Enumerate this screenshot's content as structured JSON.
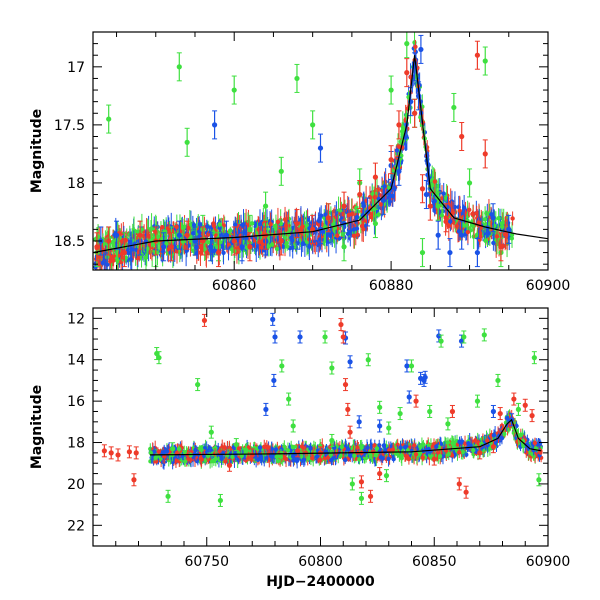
{
  "chart_data": [
    {
      "type": "scatter",
      "xlabel": "",
      "ylabel": "Magnitude",
      "xlim": [
        60842,
        60900
      ],
      "ylim": [
        18.75,
        16.7
      ],
      "y_inverted": true,
      "x_ticks": [
        60860,
        60880,
        60900
      ],
      "x_tick_labels": [
        "60860",
        "60880",
        "60900"
      ],
      "y_ticks": [
        17,
        17.5,
        18,
        18.5
      ],
      "y_tick_labels": [
        "17",
        "17.5",
        "18",
        "18.5"
      ],
      "grid": false,
      "colors": {
        "blue": "#1a52e6",
        "green": "#3fe040",
        "red": "#ee3b2a",
        "model": "#000000"
      },
      "model_curve": {
        "x": [
          60842,
          60850,
          60860,
          60870,
          60876,
          60880,
          60882,
          60883,
          60885,
          60888,
          60892,
          60896,
          60900
        ],
        "y": [
          18.6,
          18.5,
          18.47,
          18.42,
          18.32,
          18.05,
          17.5,
          16.9,
          18.05,
          18.3,
          18.38,
          18.44,
          18.48
        ]
      },
      "series": [
        {
          "color": "blue",
          "x": [
            60843,
            60845,
            60848,
            60851,
            60853,
            60855,
            60857,
            60859,
            60861,
            60864,
            60868,
            60871,
            60874,
            60877,
            60879,
            60881,
            60882.5,
            60883,
            60883.5,
            60884.5,
            60886,
            60887.5,
            60889,
            60891,
            60893,
            60895,
            60857.5,
            60871,
            60880,
            60883.8
          ],
          "y": [
            18.5,
            18.45,
            18.5,
            18.55,
            18.45,
            18.5,
            18.55,
            18.45,
            18.55,
            18.5,
            18.45,
            18.4,
            18.35,
            18.25,
            18.15,
            17.9,
            17.3,
            17.0,
            17.25,
            18.1,
            18.45,
            18.6,
            18.45,
            18.6,
            18.3,
            18.4,
            17.5,
            17.7,
            17.85,
            16.85
          ]
        },
        {
          "color": "green",
          "x": [
            60842.5,
            60844,
            60846,
            60848,
            60850,
            60852,
            60853,
            60854,
            60856,
            60858,
            60860,
            60862,
            60864,
            60866,
            60868,
            60870,
            60872,
            60874,
            60876,
            60878,
            60880,
            60882,
            60883,
            60884,
            60886,
            60888,
            60890,
            60892,
            60894
          ],
          "y": [
            18.6,
            17.45,
            18.55,
            18.45,
            18.6,
            18.5,
            17.0,
            17.65,
            18.4,
            18.55,
            17.2,
            18.4,
            18.2,
            17.9,
            17.1,
            17.5,
            18.3,
            18.55,
            18.0,
            18.35,
            17.2,
            16.8,
            17.4,
            18.6,
            18.2,
            17.35,
            18.0,
            16.95,
            18.6
          ]
        },
        {
          "color": "red",
          "x": [
            60842.5,
            60844,
            60846,
            60848,
            60850,
            60852,
            60854,
            60856,
            60858,
            60860,
            60862,
            60864,
            60866,
            60868,
            60870,
            60872,
            60874,
            60876,
            60878,
            60880,
            60881,
            60882,
            60883,
            60884,
            60885,
            60887,
            60889,
            60891,
            60892,
            60894
          ],
          "y": [
            18.55,
            18.5,
            18.6,
            18.45,
            18.5,
            18.55,
            18.45,
            18.5,
            18.6,
            18.5,
            18.55,
            18.45,
            18.5,
            18.35,
            18.4,
            18.3,
            18.2,
            18.1,
            17.95,
            17.8,
            17.5,
            17.05,
            17.4,
            18.05,
            18.2,
            18.3,
            17.6,
            16.9,
            17.75,
            18.55
          ]
        }
      ]
    },
    {
      "type": "scatter",
      "xlabel": "HJD−2400000",
      "ylabel": "Magnitude",
      "xlim": [
        60700,
        60900
      ],
      "ylim": [
        23,
        11.5
      ],
      "y_inverted": true,
      "x_ticks": [
        60750,
        60800,
        60850,
        60900
      ],
      "x_tick_labels": [
        "60750",
        "60800",
        "60850",
        "60900"
      ],
      "y_ticks": [
        12,
        14,
        16,
        18,
        20,
        22
      ],
      "y_tick_labels": [
        "12",
        "14",
        "16",
        "18",
        "20",
        "22"
      ],
      "grid": false,
      "colors": {
        "blue": "#1a52e6",
        "green": "#3fe040",
        "red": "#ee3b2a",
        "model": "#000000"
      },
      "model_curve": {
        "x": [
          60725,
          60780,
          60840,
          60870,
          60878,
          60882,
          60884,
          60887,
          60892,
          60897
        ],
        "y": [
          18.6,
          18.55,
          18.45,
          18.2,
          17.8,
          17.1,
          16.9,
          17.8,
          18.3,
          18.4
        ]
      },
      "series": [
        {
          "color": "blue",
          "x": [
            60779,
            60780,
            60779.5,
            60776,
            60791,
            60811,
            60813,
            60817,
            60826,
            60838,
            60839,
            60844,
            60846,
            60852,
            60862,
            60876,
            60884,
            60845.5
          ],
          "y": [
            12.05,
            12.9,
            15.0,
            16.4,
            12.9,
            12.95,
            14.1,
            17.0,
            17.2,
            14.3,
            15.8,
            14.9,
            14.85,
            12.85,
            13.1,
            16.5,
            16.9,
            15.0
          ]
        },
        {
          "color": "green",
          "x": [
            60728,
            60729,
            60733,
            60746,
            60752,
            60756,
            60763,
            60783,
            60786,
            60788,
            60802,
            60805,
            60814,
            60818,
            60821,
            60826,
            60830,
            60835,
            60840,
            60848,
            60853,
            60856,
            60863,
            60869,
            60872,
            60878,
            60887,
            60894,
            60896,
            60735,
            60805,
            60829
          ],
          "y": [
            13.7,
            13.9,
            20.6,
            15.2,
            17.5,
            20.8,
            18.1,
            14.3,
            15.9,
            17.2,
            12.9,
            14.4,
            20.0,
            20.7,
            14.0,
            16.3,
            17.3,
            16.6,
            14.3,
            16.5,
            13.1,
            17.1,
            12.9,
            16.0,
            12.8,
            15.0,
            16.4,
            13.9,
            19.8,
            18.3,
            17.9,
            19.6
          ]
        },
        {
          "color": "red",
          "x": [
            60705,
            60708,
            60711,
            60716,
            60719,
            60749,
            60760,
            60770,
            60790,
            60800,
            60809,
            60810,
            60811,
            60812,
            60813,
            60818,
            60822,
            60826,
            60842,
            60850,
            60858,
            60861,
            60864,
            60870,
            60876,
            60879,
            60885,
            60890,
            60893,
            60718
          ],
          "y": [
            18.4,
            18.5,
            18.6,
            18.45,
            18.5,
            12.1,
            19.1,
            18.6,
            18.4,
            18.5,
            12.3,
            12.9,
            15.2,
            16.4,
            17.5,
            19.9,
            20.6,
            19.5,
            16.0,
            18.8,
            16.5,
            20.0,
            20.4,
            18.5,
            18.2,
            16.6,
            15.9,
            16.2,
            16.7,
            19.8
          ]
        }
      ]
    }
  ]
}
